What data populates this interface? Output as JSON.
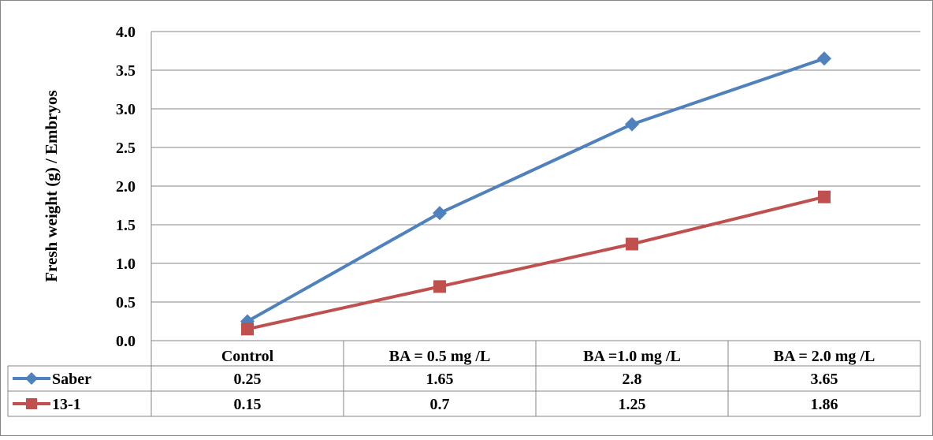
{
  "chart_data": {
    "type": "line",
    "title": "",
    "xlabel": "",
    "ylabel": "Fresh weight (g) / Embryos",
    "ylim": [
      0,
      4
    ],
    "yticks": [
      "0.0",
      "0.5",
      "1.0",
      "1.5",
      "2.0",
      "2.5",
      "3.0",
      "3.5",
      "4.0"
    ],
    "grid": true,
    "legend": "data-table",
    "categories": [
      "Control",
      "BA = 0.5 mg /L",
      "BA =1.0 mg /L",
      "BA = 2.0 mg /L"
    ],
    "series": [
      {
        "name": "Saber",
        "values": [
          0.25,
          1.65,
          2.8,
          3.65
        ],
        "labels": [
          "0.25",
          "1.65",
          "2.8",
          "3.65"
        ],
        "color": "#4f81bd",
        "marker": "diamond"
      },
      {
        "name": "13-1",
        "values": [
          0.15,
          0.7,
          1.25,
          1.86
        ],
        "labels": [
          "0.15",
          "0.7",
          "1.25",
          "1.86"
        ],
        "color": "#c0504d",
        "marker": "square"
      }
    ]
  }
}
